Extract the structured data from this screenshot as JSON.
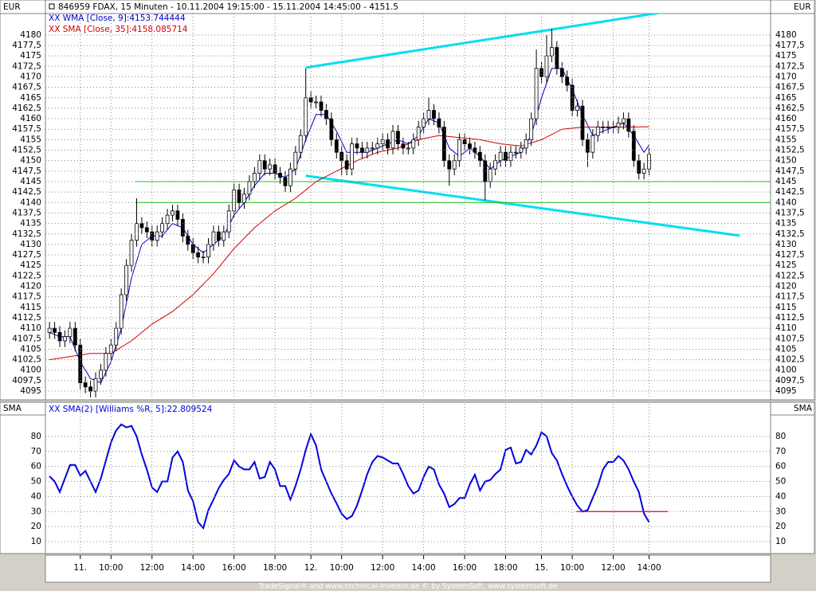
{
  "chart_data": {
    "type": "candlestick",
    "title": "846959  FDAX, 15 Minuten - 10.11.2004 19:15:00 - 15.11.2004 14:45:00 - 4151.5",
    "axis_label": "EUR",
    "categories": [
      null,
      null,
      null,
      null,
      null,
      null,
      "11.",
      null,
      null,
      null,
      null,
      null,
      "10:00",
      null,
      null,
      null,
      null,
      null,
      null,
      null,
      "12:00",
      null,
      null,
      null,
      null,
      null,
      null,
      null,
      "14:00",
      null,
      null,
      null,
      null,
      null,
      null,
      null,
      "16:00",
      null,
      null,
      null,
      null,
      null,
      null,
      null,
      "18:00",
      null,
      null,
      null,
      null,
      null,
      null,
      "12.",
      null,
      null,
      null,
      null,
      null,
      "10:00",
      null,
      null,
      null,
      null,
      null,
      null,
      null,
      "12:00",
      null,
      null,
      null,
      null,
      null,
      null,
      null,
      "14:00",
      null,
      null,
      null,
      null,
      null,
      null,
      null,
      "16:00",
      null,
      null,
      null,
      null,
      null,
      null,
      null,
      "18:00",
      null,
      null,
      null,
      null,
      null,
      null,
      "15.",
      null,
      null,
      null,
      null,
      null,
      "10:00",
      null,
      null,
      null,
      null,
      null,
      null,
      null,
      "12:00",
      null,
      null,
      null,
      null,
      null,
      null,
      "14:00"
    ],
    "open": [
      4109,
      4110,
      4109,
      4107,
      4108,
      4110,
      4106,
      4097,
      4096,
      4095,
      4098,
      4100,
      4104,
      4106,
      4110,
      4118,
      4125,
      4131,
      4135,
      4134,
      4133,
      4131,
      4133,
      4135,
      4137,
      4138,
      4136,
      4132,
      4130,
      4128,
      4127,
      4127,
      4130,
      4133,
      4131,
      4133,
      4138,
      4143,
      4140,
      4142,
      4145,
      4147,
      4150,
      4148,
      4149,
      4147,
      4146,
      4144,
      4148,
      4152,
      4156,
      4165,
      4164,
      4164,
      4162,
      4160,
      4155,
      4152,
      4150,
      4148,
      4154,
      4153,
      4152,
      4153,
      4153,
      4154,
      4155,
      4153,
      4157,
      4154,
      4153,
      4153,
      4155,
      4158,
      4160,
      4162,
      4160,
      4158,
      4150,
      4148,
      4150,
      4155,
      4154,
      4153,
      4152,
      4150,
      4145,
      4148,
      4150,
      4152,
      4150,
      4152,
      4152,
      4153,
      4155,
      4160,
      4172,
      4170,
      4175,
      4177,
      4172,
      4170,
      4168,
      4162,
      4163,
      4155,
      4152,
      4156,
      4158,
      4158,
      4158,
      4158,
      4159,
      4160,
      4157,
      4150,
      4147,
      4148
    ],
    "high": [
      4111.5,
      4111.5,
      4110.5,
      4109.5,
      4111.5,
      4111.5,
      4107.5,
      4098.5,
      4097.5,
      4099.5,
      4101.5,
      4105.5,
      4107.5,
      4111.5,
      4119.5,
      4126.5,
      4132.5,
      4141,
      4136.5,
      4135.5,
      4134.5,
      4134.5,
      4136.5,
      4138.5,
      4139.5,
      4139.5,
      4137.5,
      4133.5,
      4131.5,
      4129.5,
      4128.5,
      4131.5,
      4134.5,
      4134.5,
      4134.5,
      4139.5,
      4144.5,
      4144.5,
      4143.5,
      4146.5,
      4148.5,
      4151.5,
      4151.5,
      4150.5,
      4150.5,
      4148.5,
      4147.5,
      4149.5,
      4153.5,
      4157.5,
      4172,
      4166.5,
      4165.5,
      4165.5,
      4163.5,
      4161.5,
      4156.5,
      4153.5,
      4151.5,
      4155.5,
      4155.5,
      4154.5,
      4154.5,
      4154.5,
      4155.5,
      4156.5,
      4156.5,
      4158.5,
      4158.5,
      4155.5,
      4154.5,
      4156.5,
      4159.5,
      4161.5,
      4165,
      4163.5,
      4161.5,
      4159.5,
      4151.5,
      4151.5,
      4156.5,
      4156.5,
      4155.5,
      4154.5,
      4153.5,
      4151.5,
      4149.5,
      4151.5,
      4153.5,
      4153.5,
      4153.5,
      4153.5,
      4154.5,
      4156.5,
      4161.5,
      4176.5,
      4173.5,
      4180,
      4181.5,
      4178.5,
      4173.5,
      4171.5,
      4169.5,
      4164.5,
      4164.5,
      4156.5,
      4157.5,
      4159.5,
      4159.5,
      4159.5,
      4159.5,
      4160.5,
      4161.5,
      4161.5,
      4158.5,
      4151.5,
      4149.5,
      4153
    ],
    "low": [
      4107.5,
      4107.5,
      4105.5,
      4105.5,
      4106.5,
      4104.5,
      4095.5,
      4094.5,
      4093.5,
      4093.5,
      4096.5,
      4098.5,
      4102.5,
      4104.5,
      4108.5,
      4116.5,
      4123.5,
      4129.5,
      4132.5,
      4131.5,
      4129.5,
      4129.5,
      4131.5,
      4133.5,
      4135.5,
      4134.5,
      4130.5,
      4128.5,
      4126.5,
      4125.5,
      4125.5,
      4125.5,
      4128.5,
      4129.5,
      4129.5,
      4131.5,
      4136.5,
      4138.5,
      4138.5,
      4140.5,
      4143.5,
      4145.5,
      4146.5,
      4146.5,
      4145.5,
      4144.5,
      4142.5,
      4142.5,
      4146.5,
      4150.5,
      4154.5,
      4162.5,
      4162.5,
      4160.5,
      4158.5,
      4153.5,
      4150.5,
      4146.5,
      4146.5,
      4146.5,
      4151.5,
      4150.5,
      4150.5,
      4151.5,
      4151.5,
      4152.5,
      4151.5,
      4151.5,
      4152.5,
      4151.5,
      4151.5,
      4151.5,
      4153.5,
      4156.5,
      4158.5,
      4158.5,
      4156.5,
      4148.5,
      4144,
      4146.5,
      4148.5,
      4152.5,
      4151.5,
      4150.5,
      4148.5,
      4140.5,
      4143.5,
      4146.5,
      4148.5,
      4148.5,
      4148.5,
      4150.5,
      4150.5,
      4151.5,
      4153.5,
      4158.5,
      4168.5,
      4168.5,
      4173.5,
      4170.5,
      4168.5,
      4166.5,
      4160.5,
      4160.5,
      4153.5,
      4148.5,
      4150.5,
      4154.5,
      4156.5,
      4156.5,
      4156.5,
      4156.5,
      4157.5,
      4155.5,
      4148.5,
      4145.5,
      4145.5,
      4146.5
    ],
    "close": [
      4110,
      4109,
      4107,
      4108,
      4110,
      4106,
      4097,
      4096,
      4095,
      4098,
      4100,
      4104,
      4106,
      4110,
      4118,
      4125,
      4131,
      4135,
      4134,
      4133,
      4131,
      4133,
      4135,
      4137,
      4138,
      4136,
      4132,
      4130,
      4128,
      4127,
      4127,
      4130,
      4133,
      4131,
      4133,
      4138,
      4143,
      4140,
      4142,
      4145,
      4147,
      4150,
      4148,
      4149,
      4147,
      4146,
      4144,
      4148,
      4152,
      4156,
      4165,
      4164,
      4164,
      4162,
      4160,
      4155,
      4152,
      4150,
      4148,
      4154,
      4153,
      4152,
      4153,
      4153,
      4154,
      4155,
      4153,
      4157,
      4154,
      4153,
      4153,
      4155,
      4158,
      4160,
      4162,
      4160,
      4158,
      4150,
      4148,
      4150,
      4155,
      4154,
      4153,
      4152,
      4150,
      4145,
      4148,
      4150,
      4152,
      4150,
      4152,
      4152,
      4153,
      4155,
      4160,
      4172,
      4170,
      4175,
      4177,
      4172,
      4170,
      4168,
      4162,
      4163,
      4155,
      4152,
      4156,
      4158,
      4158,
      4158,
      4158,
      4159,
      4160,
      4157,
      4150,
      4147,
      4148,
      4151.5
    ],
    "xlim": [
      -0.8,
      140.7
    ],
    "ylim": [
      4093.3,
      4185.1
    ],
    "yticks": [
      4095,
      {
        "value": 4097.5,
        "label": "4097,5"
      },
      4100,
      {
        "value": 4102.5,
        "label": "4102,5"
      },
      4105,
      {
        "value": 4107.5,
        "label": "4107,5"
      },
      4110,
      {
        "value": 4112.5,
        "label": "4112,5"
      },
      4115,
      {
        "value": 4117.5,
        "label": "4117,5"
      },
      4120,
      {
        "value": 4122.5,
        "label": "4122,5"
      },
      4125,
      {
        "value": 4127.5,
        "label": "4127,5"
      },
      4130,
      {
        "value": 4132.5,
        "label": "4132,5"
      },
      4135,
      {
        "value": 4137.5,
        "label": "4137,5"
      },
      4140,
      {
        "value": 4142.5,
        "label": "4142,5"
      },
      4145,
      {
        "value": 4147.5,
        "label": "4147,5"
      },
      4150,
      {
        "value": 4152.5,
        "label": "4152,5"
      },
      4155,
      {
        "value": 4157.5,
        "label": "4157,5"
      },
      4160,
      {
        "value": 4162.5,
        "label": "4162,5"
      },
      4165,
      {
        "value": 4167.5,
        "label": "4167,5"
      },
      4170,
      {
        "value": 4172.5,
        "label": "4172,5"
      },
      4175,
      {
        "value": 4177.5,
        "label": "4177,5"
      },
      4180
    ],
    "grid": true,
    "lines": [
      {
        "name": "XX WMA [Close, 9]:4153.744444",
        "color": "#0000c0",
        "x": [
          0,
          2,
          4,
          6,
          8,
          10,
          12,
          14,
          16,
          18,
          20,
          22,
          24,
          26,
          28,
          30,
          32,
          34,
          36,
          38,
          40,
          42,
          44,
          46,
          48,
          50,
          52,
          54,
          56,
          58,
          60,
          62,
          64,
          66,
          68,
          70,
          72,
          74,
          76,
          78,
          80,
          82,
          84,
          86,
          88,
          90,
          92,
          94,
          96,
          98,
          100,
          102,
          104,
          106,
          108,
          110,
          112,
          114,
          116,
          117
        ],
        "values": [
          4109,
          4108,
          4108,
          4102,
          4098,
          4097,
          4102,
          4110,
          4122,
          4130,
          4132,
          4132,
          4135,
          4134,
          4130,
          4128,
          4130,
          4132,
          4137,
          4140,
          4144,
          4147,
          4147,
          4146,
          4148,
          4155,
          4161,
          4161,
          4157,
          4152,
          4152,
          4152,
          4153,
          4154,
          4155,
          4154,
          4156,
          4160,
          4159,
          4153,
          4151,
          4153,
          4151,
          4148,
          4150,
          4151,
          4152,
          4156,
          4165,
          4172,
          4172,
          4167,
          4161,
          4156,
          4157,
          4158,
          4159,
          4156,
          4152,
          4153.7
        ]
      },
      {
        "name": "XX SMA [Close, 35]:4158.085714",
        "color": "#d00000",
        "x": [
          0,
          8,
          12,
          16,
          20,
          24,
          28,
          32,
          36,
          40,
          44,
          48,
          52,
          56,
          60,
          64,
          68,
          72,
          76,
          80,
          84,
          88,
          92,
          96,
          100,
          104,
          108,
          112,
          117
        ],
        "values": [
          4102.5,
          4104,
          4104,
          4107,
          4111,
          4114,
          4118,
          4123,
          4129,
          4134,
          4138,
          4141,
          4145,
          4147.5,
          4150,
          4152,
          4153,
          4155,
          4156,
          4155.5,
          4155,
          4154,
          4153.5,
          4155,
          4157.5,
          4158,
          4158,
          4158,
          4158.1
        ]
      }
    ],
    "trendlines": [
      {
        "color": "#00e0f0",
        "x": [
          50,
          133.4
        ],
        "y": [
          4172.2,
          4188
        ]
      },
      {
        "color": "#00e0f0",
        "x": [
          50,
          134.7
        ],
        "y": [
          4146.4,
          4132.1
        ]
      },
      {
        "color": "#00d000",
        "x": [
          16.8,
          140.7
        ],
        "y": [
          4145,
          4145
        ]
      },
      {
        "color": "#00d000",
        "x": [
          16.8,
          140.7
        ],
        "y": [
          4140,
          4140
        ]
      }
    ],
    "indicator": {
      "type": "line",
      "axis_label": "SMA",
      "name": "XX SMA(2) [Williams %R, 5]:22.809524",
      "color": "#0000e0",
      "values": [
        53.5,
        50,
        43,
        52,
        61,
        61,
        54,
        57,
        50,
        43,
        52,
        64,
        76,
        84,
        88,
        86,
        87,
        80,
        68,
        58,
        46,
        43,
        50,
        50,
        66,
        70,
        63,
        44,
        37,
        23,
        19,
        31,
        38,
        45.5,
        51,
        55,
        64,
        60,
        58,
        58,
        63,
        52,
        53,
        63,
        58,
        47,
        47,
        38,
        47,
        58,
        71,
        81.5,
        74,
        58,
        50,
        42,
        35.5,
        28.6,
        25,
        27,
        34,
        44,
        55,
        63,
        67,
        66,
        64,
        62,
        62,
        55,
        47,
        42,
        44,
        53,
        60,
        58,
        48,
        42,
        33,
        35,
        39,
        39,
        48,
        54.5,
        44,
        50,
        51,
        55,
        58,
        71,
        72.6,
        62,
        63,
        71,
        68,
        74,
        82.7,
        80,
        69,
        64,
        55,
        47,
        40,
        34,
        30,
        31,
        39,
        47,
        58,
        63,
        63,
        67,
        64,
        58,
        50,
        43,
        28.6,
        22.8
      ],
      "ylim": [
        3.1,
        101.7
      ],
      "yticks": [
        10,
        20,
        30,
        40,
        50,
        60,
        70,
        80
      ],
      "hline": {
        "color": "#d00000",
        "x": [
          102.8,
          120.7
        ],
        "y": [
          30,
          30
        ]
      }
    },
    "footer": "TradeSignal® and www.technical-investor.de © by SystemSoft, www.systemsoft.de"
  }
}
